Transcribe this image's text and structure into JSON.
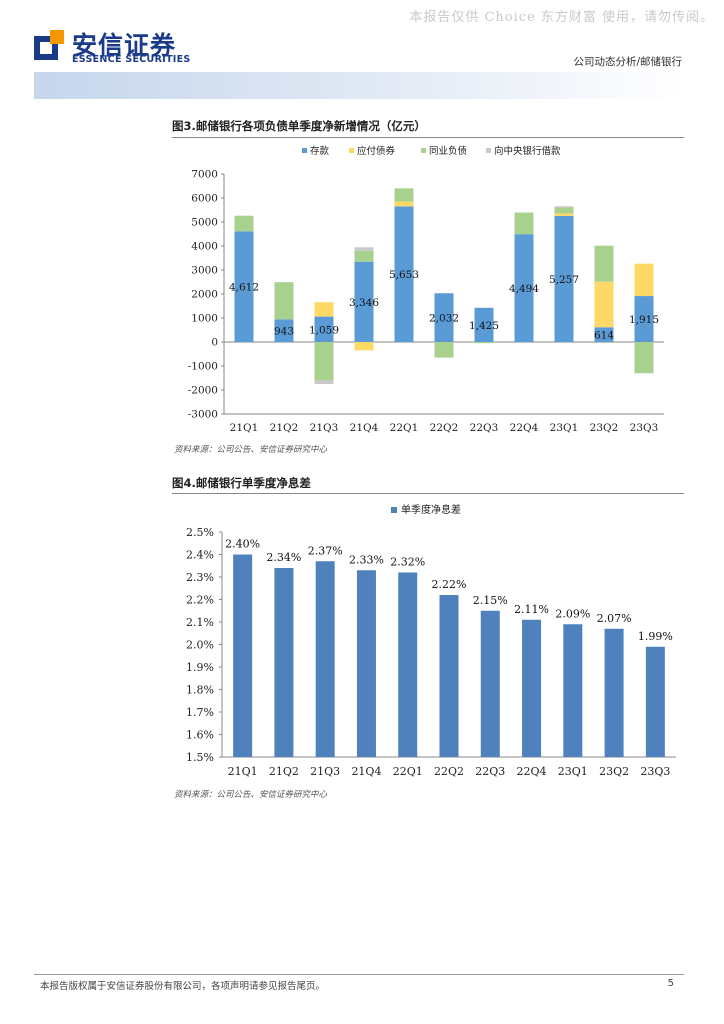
{
  "watermark": "本报告仅供 Choice 东方财富 使用，请勿传阅。",
  "header": {
    "logo_cn": "安信证券",
    "logo_en": "ESSENCE SECURITIES",
    "report_type": "公司动态分析/邮储银行"
  },
  "colors": {
    "deposits": "#5b9bd5",
    "bonds": "#ffd966",
    "interbank": "#a9d18e",
    "central_bank": "#c9c9c9",
    "nim_bar": "#4f81bd",
    "brand": "#1a3a8a"
  },
  "figure3": {
    "title": "图3.邮储银行各项负债单季度净新增情况（亿元）",
    "source": "资料来源：公司公告、安信证券研究中心"
  },
  "figure4": {
    "title": "图4.邮储银行单季度净息差",
    "source": "资料来源：公司公告、安信证券研究中心"
  },
  "chart_data": [
    {
      "type": "bar",
      "stacked": true,
      "title": "图3.邮储银行各项负债单季度净新增情况（亿元）",
      "categories": [
        "21Q1",
        "21Q2",
        "21Q3",
        "21Q4",
        "22Q1",
        "22Q2",
        "22Q3",
        "22Q4",
        "23Q1",
        "23Q2",
        "23Q3"
      ],
      "series": [
        {
          "name": "存款",
          "color": "#5b9bd5",
          "values": [
            4612,
            943,
            1059,
            3346,
            5653,
            2032,
            1425,
            4494,
            5257,
            614,
            1915
          ]
        },
        {
          "name": "应付债券",
          "color": "#ffd966",
          "values": [
            0,
            0,
            600,
            -350,
            200,
            0,
            0,
            0,
            100,
            1900,
            1350
          ]
        },
        {
          "name": "同业负债",
          "color": "#a9d18e",
          "values": [
            650,
            1550,
            -1600,
            450,
            550,
            -650,
            -50,
            900,
            250,
            1500,
            -1300
          ]
        },
        {
          "name": "向中央银行借款",
          "color": "#c9c9c9",
          "values": [
            0,
            0,
            -150,
            150,
            0,
            0,
            0,
            0,
            50,
            0,
            0
          ]
        }
      ],
      "data_labels": [
        "4,612",
        "943",
        "1,059",
        "3,346",
        "5,653",
        "2,032",
        "1,425",
        "4,494",
        "5,257",
        "614",
        "1,915"
      ],
      "ylim": [
        -3000,
        7000
      ],
      "yticks": [
        "7000",
        "6000",
        "5000",
        "4000",
        "3000",
        "2000",
        "1000",
        "0",
        "-1000",
        "-2000",
        "-3000"
      ],
      "xlabel": "",
      "ylabel": "",
      "legend": "top"
    },
    {
      "type": "bar",
      "title": "图4.邮储银行单季度净息差",
      "series_name": "单季度净息差",
      "categories": [
        "21Q1",
        "21Q2",
        "21Q3",
        "21Q4",
        "22Q1",
        "22Q2",
        "22Q3",
        "22Q4",
        "23Q1",
        "23Q2",
        "23Q3"
      ],
      "values": [
        2.4,
        2.34,
        2.37,
        2.33,
        2.32,
        2.22,
        2.15,
        2.11,
        2.09,
        2.07,
        1.99
      ],
      "data_labels": [
        "2.40%",
        "2.34%",
        "2.37%",
        "2.33%",
        "2.32%",
        "2.22%",
        "2.15%",
        "2.11%",
        "2.09%",
        "2.07%",
        "1.99%"
      ],
      "ylim": [
        1.5,
        2.5
      ],
      "yticks": [
        "2.5%",
        "2.4%",
        "2.3%",
        "2.2%",
        "2.1%",
        "2.0%",
        "1.9%",
        "1.8%",
        "1.7%",
        "1.6%",
        "1.5%"
      ],
      "xlabel": "",
      "ylabel": "",
      "legend": "top"
    }
  ],
  "footer": {
    "disclaimer": "本报告版权属于安信证券股份有限公司，各项声明请参见报告尾页。",
    "page": "5"
  }
}
